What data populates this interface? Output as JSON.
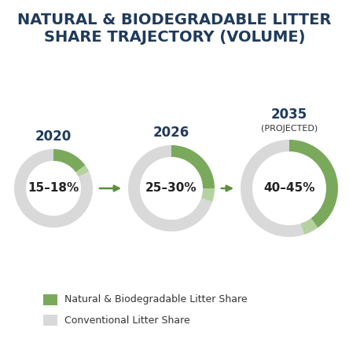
{
  "chart_data": {
    "type": "donut",
    "title": "NATURAL & BIODEGRADABLE LITTER SHARE TRAJECTORY (VOLUME)",
    "categories": [
      "2020",
      "2026",
      "2035"
    ],
    "category_notes": {
      "2035": "(PROJECTED)"
    },
    "total": 100,
    "series": [
      {
        "name": "Natural & Biodegradable Litter Share",
        "color": "#7aa95c",
        "low": [
          15,
          25,
          40
        ],
        "high": [
          18,
          30,
          45
        ],
        "value_labels": [
          "15–18%",
          "25–30%",
          "40–45%"
        ]
      },
      {
        "name": "Conventional Litter Share",
        "color": "#d9d9d9"
      }
    ],
    "legend": "lower left"
  }
}
